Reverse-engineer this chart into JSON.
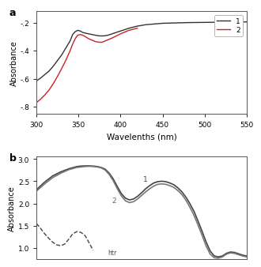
{
  "panel_a": {
    "xlabel": "Wavelenths (nm)",
    "ylabel": "Absorbance",
    "xlim": [
      300,
      550
    ],
    "ylim": [
      -0.85,
      -0.12
    ],
    "yticks": [
      -0.8,
      -0.6,
      -0.4,
      -0.2
    ],
    "ytick_labels": [
      "-.8",
      "-.6",
      "-.4",
      "-.2"
    ],
    "xticks": [
      300,
      350,
      400,
      450,
      500,
      550
    ],
    "series": [
      {
        "label": "1",
        "color": "#333333",
        "style": "solid",
        "x": [
          300,
          305,
          310,
          315,
          320,
          325,
          330,
          335,
          340,
          343,
          346,
          349,
          352,
          355,
          358,
          362,
          366,
          370,
          375,
          380,
          385,
          390,
          395,
          400,
          410,
          420,
          430,
          450,
          480,
          550
        ],
        "y": [
          -0.615,
          -0.595,
          -0.57,
          -0.545,
          -0.51,
          -0.47,
          -0.43,
          -0.38,
          -0.33,
          -0.285,
          -0.265,
          -0.255,
          -0.26,
          -0.27,
          -0.275,
          -0.28,
          -0.285,
          -0.29,
          -0.295,
          -0.295,
          -0.29,
          -0.28,
          -0.27,
          -0.26,
          -0.24,
          -0.225,
          -0.215,
          -0.205,
          -0.2,
          -0.195
        ]
      },
      {
        "label": "2",
        "color": "#cc2222",
        "style": "solid",
        "x": [
          300,
          305,
          310,
          315,
          320,
          325,
          330,
          335,
          340,
          343,
          346,
          349,
          352,
          355,
          358,
          362,
          366,
          370,
          374,
          378,
          382,
          386,
          390,
          395,
          400,
          410,
          420
        ],
        "y": [
          -0.77,
          -0.745,
          -0.715,
          -0.68,
          -0.635,
          -0.583,
          -0.527,
          -0.467,
          -0.4,
          -0.353,
          -0.315,
          -0.29,
          -0.285,
          -0.29,
          -0.3,
          -0.315,
          -0.325,
          -0.335,
          -0.34,
          -0.34,
          -0.33,
          -0.32,
          -0.31,
          -0.295,
          -0.28,
          -0.255,
          -0.24
        ]
      }
    ]
  },
  "panel_b": {
    "xlabel": "",
    "ylabel": "Absorbance",
    "xlim": [
      300,
      560
    ],
    "ylim": [
      0.75,
      3.05
    ],
    "yticks": [
      1.0,
      1.5,
      2.0,
      2.5,
      3.0
    ],
    "ytick_labels": [
      "1.0",
      "1.5",
      "2.0",
      "2.5",
      "3.0"
    ],
    "series": [
      {
        "label": "1",
        "color": "#444444",
        "style": "solid",
        "lw": 1.2,
        "x": [
          300,
          310,
          320,
          330,
          340,
          350,
          355,
          360,
          365,
          370,
          375,
          380,
          385,
          390,
          395,
          400,
          405,
          410,
          415,
          420,
          425,
          430,
          435,
          440,
          445,
          450,
          455,
          460,
          465,
          470,
          475,
          480,
          485,
          490,
          495,
          500,
          505,
          510,
          515,
          520,
          525,
          530,
          535,
          540,
          545,
          550,
          555,
          560
        ],
        "y": [
          2.31,
          2.48,
          2.62,
          2.71,
          2.78,
          2.83,
          2.84,
          2.845,
          2.845,
          2.84,
          2.83,
          2.81,
          2.77,
          2.68,
          2.55,
          2.38,
          2.22,
          2.12,
          2.08,
          2.1,
          2.16,
          2.24,
          2.33,
          2.4,
          2.46,
          2.49,
          2.5,
          2.49,
          2.46,
          2.42,
          2.35,
          2.26,
          2.14,
          1.99,
          1.82,
          1.6,
          1.37,
          1.13,
          0.93,
          0.82,
          0.8,
          0.82,
          0.88,
          0.91,
          0.9,
          0.87,
          0.84,
          0.82
        ]
      },
      {
        "label": "2",
        "color": "#777777",
        "style": "solid",
        "lw": 1.2,
        "x": [
          300,
          310,
          320,
          330,
          340,
          350,
          355,
          360,
          365,
          370,
          375,
          380,
          385,
          390,
          395,
          400,
          405,
          410,
          415,
          420,
          425,
          430,
          435,
          440,
          445,
          450,
          455,
          460,
          465,
          470,
          475,
          480,
          485,
          490,
          495,
          500,
          505,
          510,
          515,
          520,
          525,
          530,
          535,
          540,
          545,
          550,
          555,
          560
        ],
        "y": [
          2.28,
          2.44,
          2.58,
          2.68,
          2.76,
          2.81,
          2.82,
          2.83,
          2.835,
          2.83,
          2.82,
          2.8,
          2.75,
          2.65,
          2.51,
          2.33,
          2.17,
          2.06,
          2.02,
          2.04,
          2.1,
          2.18,
          2.26,
          2.33,
          2.39,
          2.43,
          2.44,
          2.43,
          2.4,
          2.36,
          2.29,
          2.2,
          2.07,
          1.91,
          1.73,
          1.51,
          1.28,
          1.04,
          0.86,
          0.78,
          0.77,
          0.8,
          0.86,
          0.89,
          0.88,
          0.85,
          0.82,
          0.8
        ]
      },
      {
        "label": "htr",
        "color": "#444444",
        "style": "dashed",
        "lw": 1.0,
        "x": [
          300,
          305,
          310,
          315,
          320,
          325,
          330,
          335,
          340,
          345,
          350,
          355,
          360,
          365,
          370
        ],
        "y": [
          1.55,
          1.44,
          1.32,
          1.22,
          1.13,
          1.07,
          1.05,
          1.09,
          1.2,
          1.32,
          1.37,
          1.35,
          1.28,
          1.12,
          0.95
        ]
      }
    ],
    "ann_1_x": 432,
    "ann_1_y": 2.51,
    "ann_2_x": 393,
    "ann_2_y": 2.02,
    "ann_htr_x": 388,
    "ann_htr_y": 0.86
  },
  "background_color": "#ffffff"
}
